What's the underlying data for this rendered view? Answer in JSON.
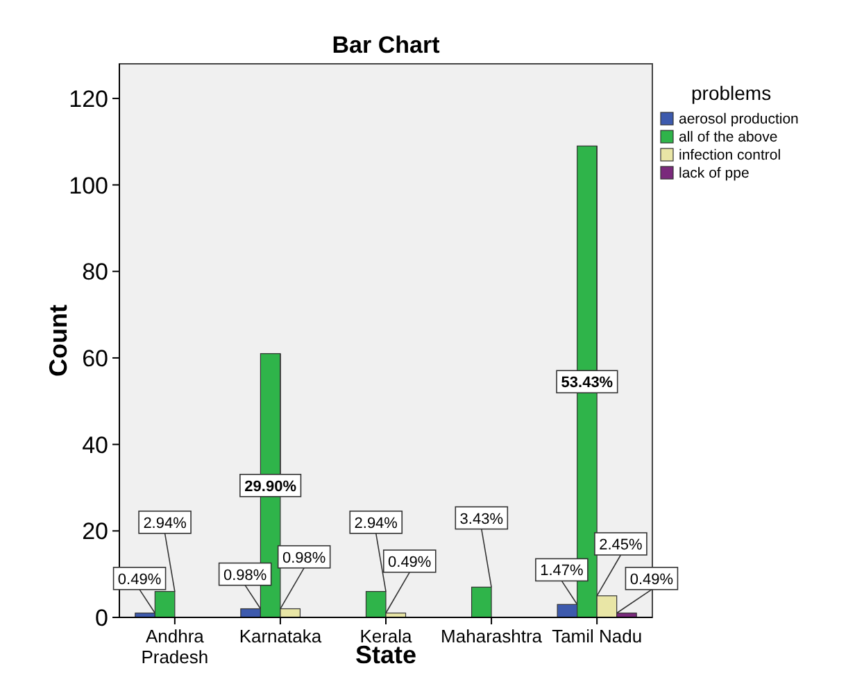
{
  "chart_data": {
    "type": "bar",
    "title": "Bar Chart",
    "xlabel": "State",
    "ylabel": "Count",
    "legend_title": "problems",
    "legend": "top right",
    "categories": [
      "Andhra Pradesh",
      "Karnataka",
      "Kerala",
      "Maharashtra",
      "Tamil Nadu"
    ],
    "ylim": [
      0,
      128
    ],
    "yticks": [
      0,
      20,
      40,
      60,
      80,
      100,
      120
    ],
    "grid": false,
    "series": [
      {
        "name": "aerosol production",
        "color": "#3d5aad",
        "values": [
          1,
          2,
          null,
          null,
          3
        ]
      },
      {
        "name": "all of the above",
        "color": "#2fb44a",
        "values": [
          6,
          61,
          6,
          7,
          109
        ]
      },
      {
        "name": "infection control",
        "color": "#e9e6a6",
        "values": [
          null,
          2,
          1,
          null,
          5
        ]
      },
      {
        "name": "lack of ppe",
        "color": "#7a2a7c",
        "values": [
          null,
          null,
          null,
          null,
          1
        ]
      }
    ],
    "annotations": [
      {
        "text": "0.49%",
        "x": "Andhra Pradesh",
        "y": 1
      },
      {
        "text": "2.94%",
        "x": "Andhra Pradesh",
        "y": 6
      },
      {
        "text": "0.98%",
        "x": "Karnataka",
        "y": 2
      },
      {
        "text": "29.90%",
        "x": "Karnataka",
        "y": 61
      },
      {
        "text": "0.98%",
        "x": "Karnataka",
        "y": 2
      },
      {
        "text": "2.94%",
        "x": "Kerala",
        "y": 6
      },
      {
        "text": "0.49%",
        "x": "Kerala",
        "y": 1
      },
      {
        "text": "3.43%",
        "x": "Maharashtra",
        "y": 7
      },
      {
        "text": "1.47%",
        "x": "Tamil Nadu",
        "y": 3
      },
      {
        "text": "53.43%",
        "x": "Tamil Nadu",
        "y": 109
      },
      {
        "text": "2.45%",
        "x": "Tamil Nadu",
        "y": 5
      },
      {
        "text": "0.49%",
        "x": "Tamil Nadu",
        "y": 1
      }
    ]
  }
}
